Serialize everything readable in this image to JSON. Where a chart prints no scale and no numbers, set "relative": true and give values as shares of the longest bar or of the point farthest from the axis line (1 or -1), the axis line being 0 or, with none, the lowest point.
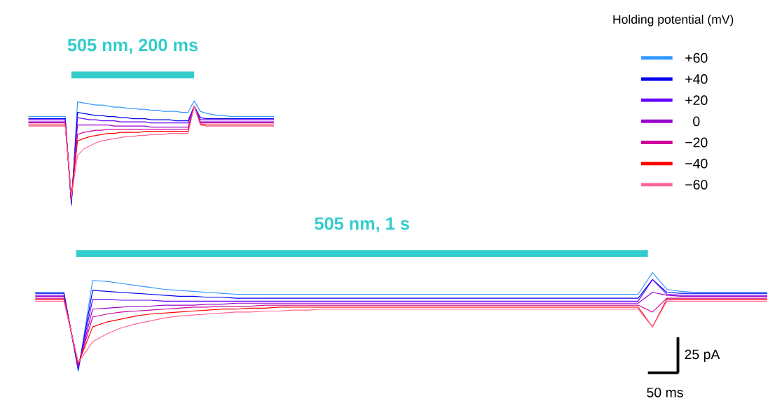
{
  "chart_data": [
    {
      "type": "line",
      "relative": true,
      "tick_labels": false,
      "legend": "top right",
      "legend_title": "Holding potential (mV)",
      "categories": [
        null,
        null,
        null,
        null,
        null,
        null,
        null,
        null,
        null,
        null,
        null,
        null,
        null,
        null,
        null,
        null,
        null,
        null,
        null,
        null,
        null,
        null,
        null,
        null,
        null,
        null,
        null,
        null,
        null,
        null,
        null,
        null,
        null,
        null,
        null,
        null,
        null,
        null,
        null,
        null,
        null
      ],
      "annotations": [
        "505 nm, 200 ms"
      ],
      "series": [
        {
          "name": "+60",
          "color": "#3399ff",
          "values": [
            0.85,
            0.85,
            0.85,
            0.85,
            0.85,
            0.85,
            0.85,
            0,
            0.99,
            0.98,
            0.97,
            0.96,
            0.96,
            0.95,
            0.94,
            0.94,
            0.93,
            0.93,
            0.92,
            0.92,
            0.91,
            0.91,
            0.9,
            0.9,
            0.9,
            0.89,
            0.89,
            1,
            0.9,
            0.88,
            0.87,
            0.86,
            0.86,
            0.85,
            0.85,
            0.85,
            0.85,
            0.85,
            0.85,
            0.85,
            0.85
          ]
        },
        {
          "name": "+40",
          "color": "#0000ee",
          "values": [
            0.83,
            0.83,
            0.83,
            0.83,
            0.83,
            0.83,
            0.83,
            0.02,
            0.89,
            0.88,
            0.87,
            0.86,
            0.86,
            0.85,
            0.85,
            0.84,
            0.84,
            0.83,
            0.83,
            0.83,
            0.82,
            0.82,
            0.82,
            0.82,
            0.81,
            0.81,
            0.81,
            0.95,
            0.84,
            0.83,
            0.83,
            0.83,
            0.83,
            0.83,
            0.83,
            0.83,
            0.83,
            0.83,
            0.83,
            0.83,
            0.83
          ]
        },
        {
          "name": "+20",
          "color": "#6600ff",
          "values": [
            0.82,
            0.82,
            0.82,
            0.82,
            0.82,
            0.82,
            0.82,
            0.03,
            0.84,
            0.83,
            0.82,
            0.82,
            0.81,
            0.81,
            0.81,
            0.8,
            0.8,
            0.8,
            0.8,
            0.8,
            0.79,
            0.79,
            0.79,
            0.79,
            0.79,
            0.79,
            0.79,
            0.95,
            0.82,
            0.82,
            0.82,
            0.82,
            0.82,
            0.82,
            0.82,
            0.82,
            0.82,
            0.82,
            0.82,
            0.82,
            0.82
          ]
        },
        {
          "name": "0",
          "color": "#9900cc",
          "values": [
            0.8,
            0.8,
            0.8,
            0.8,
            0.8,
            0.8,
            0.8,
            0.05,
            0.77,
            0.77,
            0.77,
            0.77,
            0.77,
            0.77,
            0.76,
            0.76,
            0.76,
            0.76,
            0.76,
            0.76,
            0.75,
            0.75,
            0.75,
            0.75,
            0.75,
            0.75,
            0.75,
            0.95,
            0.8,
            0.8,
            0.8,
            0.8,
            0.8,
            0.8,
            0.8,
            0.8,
            0.8,
            0.8,
            0.8,
            0.8,
            0.8
          ]
        },
        {
          "name": "−20",
          "color": "#cc0099",
          "values": [
            0.79,
            0.79,
            0.79,
            0.79,
            0.79,
            0.79,
            0.79,
            0.06,
            0.68,
            0.7,
            0.71,
            0.72,
            0.72,
            0.73,
            0.73,
            0.73,
            0.73,
            0.73,
            0.73,
            0.73,
            0.73,
            0.73,
            0.73,
            0.73,
            0.73,
            0.73,
            0.73,
            0.95,
            0.79,
            0.79,
            0.79,
            0.79,
            0.79,
            0.79,
            0.79,
            0.79,
            0.79,
            0.79,
            0.79,
            0.79,
            0.79
          ]
        },
        {
          "name": "−40",
          "color": "#ff0000",
          "values": [
            0.77,
            0.77,
            0.77,
            0.77,
            0.77,
            0.77,
            0.77,
            0.08,
            0.62,
            0.64,
            0.66,
            0.67,
            0.68,
            0.69,
            0.69,
            0.7,
            0.7,
            0.7,
            0.7,
            0.71,
            0.71,
            0.71,
            0.71,
            0.71,
            0.71,
            0.71,
            0.71,
            0.95,
            0.78,
            0.77,
            0.77,
            0.77,
            0.77,
            0.77,
            0.77,
            0.77,
            0.77,
            0.77,
            0.77,
            0.77,
            0.77
          ]
        },
        {
          "name": "−60",
          "color": "#ff6699",
          "values": [
            0.76,
            0.76,
            0.76,
            0.76,
            0.76,
            0.76,
            0.76,
            0.09,
            0.48,
            0.54,
            0.57,
            0.6,
            0.62,
            0.63,
            0.64,
            0.65,
            0.66,
            0.66,
            0.67,
            0.67,
            0.68,
            0.68,
            0.68,
            0.69,
            0.69,
            0.69,
            0.69,
            0.95,
            0.77,
            0.76,
            0.76,
            0.76,
            0.76,
            0.76,
            0.76,
            0.76,
            0.76,
            0.76,
            0.76,
            0.76,
            0.76
          ]
        }
      ]
    },
    {
      "type": "line",
      "relative": true,
      "tick_labels": false,
      "categories": [
        null,
        null,
        null,
        null,
        null,
        null,
        null,
        null,
        null,
        null,
        null,
        null,
        null,
        null,
        null,
        null,
        null,
        null,
        null,
        null,
        null,
        null,
        null,
        null,
        null,
        null,
        null,
        null,
        null,
        null,
        null,
        null,
        null,
        null,
        null,
        null,
        null,
        null,
        null,
        null,
        null,
        null,
        null,
        null,
        null,
        null,
        null,
        null,
        null,
        null,
        null,
        null
      ],
      "annotations": [
        "505 nm, 1 s",
        "25 pA",
        "50 ms"
      ],
      "series": [
        {
          "color": "#3399ff",
          "values": [
            0.8,
            0.8,
            0.8,
            0,
            0.92,
            0.91,
            0.89,
            0.87,
            0.85,
            0.83,
            0.82,
            0.81,
            0.8,
            0.79,
            0.78,
            0.78,
            0.78,
            0.78,
            0.78,
            0.78,
            0.78,
            0.78,
            0.78,
            0.78,
            0.78,
            0.78,
            0.78,
            0.78,
            0.78,
            0.78,
            0.78,
            0.78,
            0.78,
            0.78,
            0.78,
            0.78,
            0.78,
            0.78,
            0.78,
            0.78,
            0.78,
            0.78,
            0.78,
            1,
            0.83,
            0.81,
            0.8,
            0.8,
            0.8,
            0.8,
            0.8,
            0.8
          ]
        },
        {
          "color": "#0000ee",
          "values": [
            0.79,
            0.79,
            0.79,
            0.02,
            0.82,
            0.81,
            0.8,
            0.79,
            0.78,
            0.77,
            0.76,
            0.76,
            0.75,
            0.75,
            0.74,
            0.74,
            0.74,
            0.74,
            0.74,
            0.74,
            0.74,
            0.74,
            0.74,
            0.74,
            0.74,
            0.74,
            0.74,
            0.74,
            0.74,
            0.74,
            0.74,
            0.74,
            0.74,
            0.74,
            0.74,
            0.74,
            0.74,
            0.74,
            0.74,
            0.74,
            0.74,
            0.74,
            0.74,
            0.93,
            0.8,
            0.79,
            0.79,
            0.79,
            0.79,
            0.79,
            0.79,
            0.79
          ]
        },
        {
          "color": "#6600ff",
          "values": [
            0.77,
            0.77,
            0.77,
            0.03,
            0.73,
            0.73,
            0.72,
            0.72,
            0.72,
            0.71,
            0.71,
            0.71,
            0.71,
            0.71,
            0.71,
            0.71,
            0.71,
            0.71,
            0.71,
            0.71,
            0.71,
            0.71,
            0.71,
            0.71,
            0.71,
            0.71,
            0.71,
            0.71,
            0.71,
            0.71,
            0.71,
            0.71,
            0.71,
            0.71,
            0.71,
            0.71,
            0.71,
            0.71,
            0.71,
            0.71,
            0.71,
            0.71,
            0.71,
            0.93,
            0.78,
            0.77,
            0.77,
            0.77,
            0.77,
            0.77,
            0.77,
            0.77
          ]
        },
        {
          "color": "#9900cc",
          "values": [
            0.76,
            0.76,
            0.76,
            0.05,
            0.63,
            0.64,
            0.65,
            0.66,
            0.66,
            0.67,
            0.67,
            0.67,
            0.68,
            0.68,
            0.69,
            0.69,
            0.69,
            0.69,
            0.69,
            0.69,
            0.69,
            0.69,
            0.69,
            0.69,
            0.69,
            0.69,
            0.69,
            0.69,
            0.69,
            0.69,
            0.69,
            0.69,
            0.69,
            0.69,
            0.69,
            0.69,
            0.69,
            0.69,
            0.69,
            0.69,
            0.69,
            0.69,
            0.69,
            0.8,
            0.77,
            0.76,
            0.76,
            0.76,
            0.76,
            0.76,
            0.76,
            0.76
          ]
        },
        {
          "color": "#cc0099",
          "values": [
            0.74,
            0.74,
            0.74,
            0.06,
            0.55,
            0.58,
            0.6,
            0.61,
            0.62,
            0.63,
            0.64,
            0.65,
            0.65,
            0.66,
            0.66,
            0.66,
            0.67,
            0.67,
            0.67,
            0.67,
            0.67,
            0.67,
            0.67,
            0.67,
            0.67,
            0.67,
            0.67,
            0.67,
            0.67,
            0.67,
            0.67,
            0.67,
            0.67,
            0.67,
            0.67,
            0.67,
            0.67,
            0.67,
            0.67,
            0.67,
            0.67,
            0.67,
            0.67,
            0.6,
            0.74,
            0.74,
            0.74,
            0.74,
            0.74,
            0.74,
            0.74,
            0.74
          ]
        },
        {
          "color": "#ff0000",
          "values": [
            0.73,
            0.73,
            0.73,
            0.08,
            0.45,
            0.5,
            0.53,
            0.56,
            0.58,
            0.59,
            0.6,
            0.61,
            0.62,
            0.63,
            0.63,
            0.64,
            0.64,
            0.65,
            0.65,
            0.65,
            0.65,
            0.65,
            0.65,
            0.65,
            0.65,
            0.65,
            0.65,
            0.65,
            0.65,
            0.65,
            0.65,
            0.65,
            0.65,
            0.65,
            0.65,
            0.65,
            0.65,
            0.65,
            0.65,
            0.65,
            0.65,
            0.65,
            0.65,
            0.45,
            0.73,
            0.73,
            0.73,
            0.73,
            0.73,
            0.73,
            0.73,
            0.73
          ]
        },
        {
          "color": "#ff6699",
          "values": [
            0.71,
            0.71,
            0.71,
            0.09,
            0.3,
            0.38,
            0.44,
            0.48,
            0.51,
            0.54,
            0.56,
            0.57,
            0.58,
            0.59,
            0.6,
            0.6,
            0.61,
            0.61,
            0.62,
            0.62,
            0.63,
            0.63,
            0.63,
            0.63,
            0.63,
            0.63,
            0.63,
            0.63,
            0.63,
            0.63,
            0.63,
            0.63,
            0.63,
            0.63,
            0.63,
            0.63,
            0.63,
            0.63,
            0.63,
            0.63,
            0.63,
            0.63,
            0.63,
            0.45,
            0.71,
            0.71,
            0.71,
            0.71,
            0.71,
            0.71,
            0.71,
            0.71
          ]
        }
      ]
    }
  ]
}
